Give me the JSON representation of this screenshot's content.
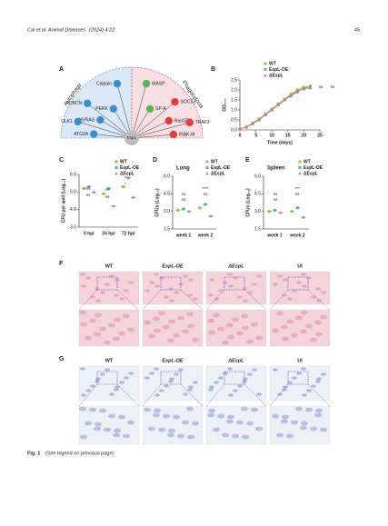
{
  "header": {
    "journal": "Cai et al. Animal Diseases",
    "issue": "(2024) 4:22",
    "page": "45"
  },
  "panel_labels": [
    "A",
    "B",
    "C",
    "D",
    "E",
    "F",
    "G"
  ],
  "panel_a": {
    "left_group": "Autophagy",
    "right_group": "Phagocytosis",
    "center": "EspL",
    "left_nodes": [
      {
        "label": "Calpain",
        "color": "#3a8fd0"
      },
      {
        "label": "RUBCN",
        "color": "#3a8fd0"
      },
      {
        "label": "PERK",
        "color": "#3a8fd0"
      },
      {
        "label": "UVRAG",
        "color": "#3a8fd0"
      },
      {
        "label": "ULK1",
        "color": "#3a8fd0"
      },
      {
        "label": "ATG2A",
        "color": "#3a8fd0"
      }
    ],
    "right_nodes": [
      {
        "label": "WASP",
        "color": "#5ab552"
      },
      {
        "label": "SP-A",
        "color": "#5ab552"
      },
      {
        "label": "SOCS3",
        "color": "#e0403c"
      },
      {
        "label": "RasGRP",
        "color": "#e0403c"
      },
      {
        "label": "TRAF3",
        "color": "#e0403c"
      },
      {
        "label": "IRAK-M",
        "color": "#e0403c"
      }
    ]
  },
  "chart_data": [
    {
      "type": "line",
      "xlabel": "Time (days)",
      "ylabel": "OD₆₀₀",
      "x": [
        0,
        2,
        4,
        6,
        8,
        10,
        12,
        14,
        16,
        18,
        20,
        22
      ],
      "series": [
        {
          "name": "WT",
          "color": "#8cc63f",
          "values": [
            0.05,
            0.15,
            0.35,
            0.55,
            0.8,
            1.05,
            1.3,
            1.55,
            1.8,
            2.0,
            2.15,
            2.2
          ]
        },
        {
          "name": "EspL-OE",
          "color": "#4fb0c6",
          "values": [
            0.05,
            0.13,
            0.3,
            0.5,
            0.75,
            1.0,
            1.25,
            1.5,
            1.7,
            1.9,
            2.05,
            2.1
          ]
        },
        {
          "name": "ΔEspL",
          "color": "#e8736f",
          "values": [
            0.05,
            0.14,
            0.32,
            0.52,
            0.78,
            1.02,
            1.28,
            1.52,
            1.75,
            1.95,
            2.1,
            2.15
          ]
        }
      ],
      "xlim": [
        0,
        25
      ],
      "xticks": [
        0,
        5,
        10,
        15,
        20,
        25
      ],
      "ylim": [
        0,
        2.5
      ],
      "yticks": [
        {
          "value": 0,
          "label": "0.0"
        },
        {
          "value": 0.5,
          "label": "0.5"
        },
        {
          "value": 1,
          "label": "1.0"
        },
        {
          "value": 1.5,
          "label": "1.5"
        },
        {
          "value": 2,
          "label": "2.0"
        },
        {
          "value": 2.5,
          "label": "2.5"
        }
      ],
      "annotations": [
        "ns",
        "ns"
      ]
    },
    {
      "type": "dot",
      "ylabel": "CFU per well (Log₁₀)",
      "categories": [
        "0 hpi",
        "24 hpi",
        "72 hpi"
      ],
      "series": [
        {
          "name": "WT",
          "color": "#8cc63f",
          "values": [
            5.2,
            4.9,
            5.3
          ]
        },
        {
          "name": "EspL-OE",
          "color": "#4fb0c6",
          "values": [
            5.3,
            5.2,
            5.8
          ]
        },
        {
          "name": "ΔEspL",
          "color": "#e8736f",
          "values": [
            5.0,
            4.2,
            4.7
          ]
        }
      ],
      "ylim": [
        3,
        6
      ],
      "yticks": [
        {
          "value": 3,
          "label": "3.0"
        },
        {
          "value": 4,
          "label": "4.0"
        },
        {
          "value": 5,
          "label": "5.0"
        },
        {
          "value": 6,
          "label": "6.0"
        }
      ],
      "annotations": [
        "ns",
        "ns",
        "***",
        "ns",
        "*",
        "*"
      ]
    },
    {
      "type": "dot",
      "title": "Lung",
      "ylabel": "CFUs (Log₁₀)",
      "categories": [
        "week 1",
        "week 2"
      ],
      "series": [
        {
          "name": "WT",
          "color": "#8cc63f",
          "values": [
            3.1,
            3.3
          ]
        },
        {
          "name": "EspL-OE",
          "color": "#4fb0c6",
          "values": [
            3.2,
            3.6
          ]
        },
        {
          "name": "ΔEspL",
          "color": "#e8736f",
          "values": [
            3.0,
            2.6
          ]
        }
      ],
      "ylim": [
        1.5,
        6
      ],
      "yticks": [
        1.5,
        {
          "value": 3,
          "label": "3.0"
        },
        4.5,
        {
          "value": 6,
          "label": "6.0"
        }
      ],
      "annotations": [
        "ns",
        "ns",
        "****",
        "ns"
      ]
    },
    {
      "type": "dot",
      "title": "Spleen",
      "ylabel": "CFUs (Log₁₀)",
      "categories": [
        "week 1",
        "week 2"
      ],
      "series": [
        {
          "name": "WT",
          "color": "#8cc63f",
          "values": [
            3.0,
            3.0
          ]
        },
        {
          "name": "EspL-OE",
          "color": "#4fb0c6",
          "values": [
            3.1,
            3.3
          ]
        },
        {
          "name": "ΔEspL",
          "color": "#e8736f",
          "values": [
            2.9,
            2.5
          ]
        }
      ],
      "ylim": [
        1.5,
        6
      ],
      "yticks": [
        1.5,
        {
          "value": 3,
          "label": "3.0"
        },
        4.5,
        {
          "value": 6,
          "label": "6.0"
        }
      ],
      "annotations": [
        "ns",
        "ns",
        "***",
        "ns"
      ]
    }
  ],
  "panel_f": {
    "columns": [
      "WT",
      "EspL-OE",
      "ΔEspL",
      "UI"
    ]
  },
  "panel_g": {
    "columns": [
      "WT",
      "EspL-OE",
      "ΔEspL",
      "UI"
    ]
  },
  "caption": {
    "label": "Fig. 1",
    "text": "(See legend on previous page)"
  }
}
